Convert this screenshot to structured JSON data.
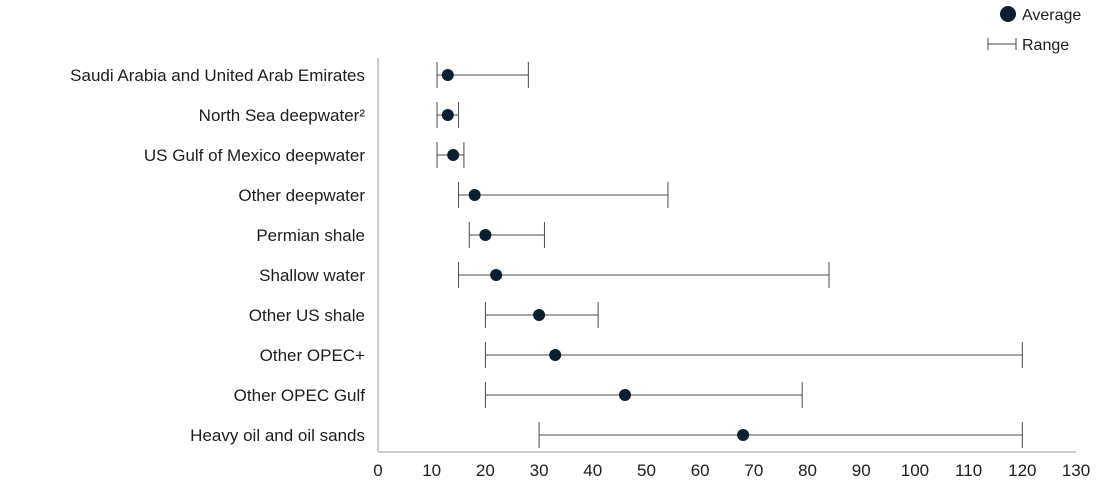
{
  "chart_data": {
    "type": "dot-range",
    "categories": [
      "Saudi Arabia and United Arab Emirates",
      "North Sea deepwater²",
      "US Gulf of Mexico deepwater",
      "Other deepwater",
      "Permian shale",
      "Shallow water",
      "Other US shale",
      "Other OPEC+",
      "Other OPEC Gulf",
      "Heavy oil and oil sands"
    ],
    "average": [
      13,
      13,
      14,
      18,
      20,
      22,
      30,
      33,
      46,
      68
    ],
    "range_min": [
      11,
      11,
      11,
      15,
      17,
      15,
      20,
      20,
      20,
      30
    ],
    "range_max": [
      28,
      15,
      16,
      54,
      31,
      84,
      41,
      120,
      79,
      120
    ],
    "xlim": [
      0,
      130
    ],
    "xticks": [
      "0",
      "10",
      "20",
      "30",
      "40",
      "50",
      "60",
      "70",
      "80",
      "90",
      "100",
      "110",
      "120",
      "130"
    ],
    "legend": {
      "placement": "top-right",
      "average_label": "Average",
      "range_label": "Range"
    },
    "colors": {
      "dot": "#0b1f33",
      "range": "#4a4a4a",
      "axis": "#9a9a9a",
      "text": "#1d1d1d"
    },
    "grid": false
  }
}
